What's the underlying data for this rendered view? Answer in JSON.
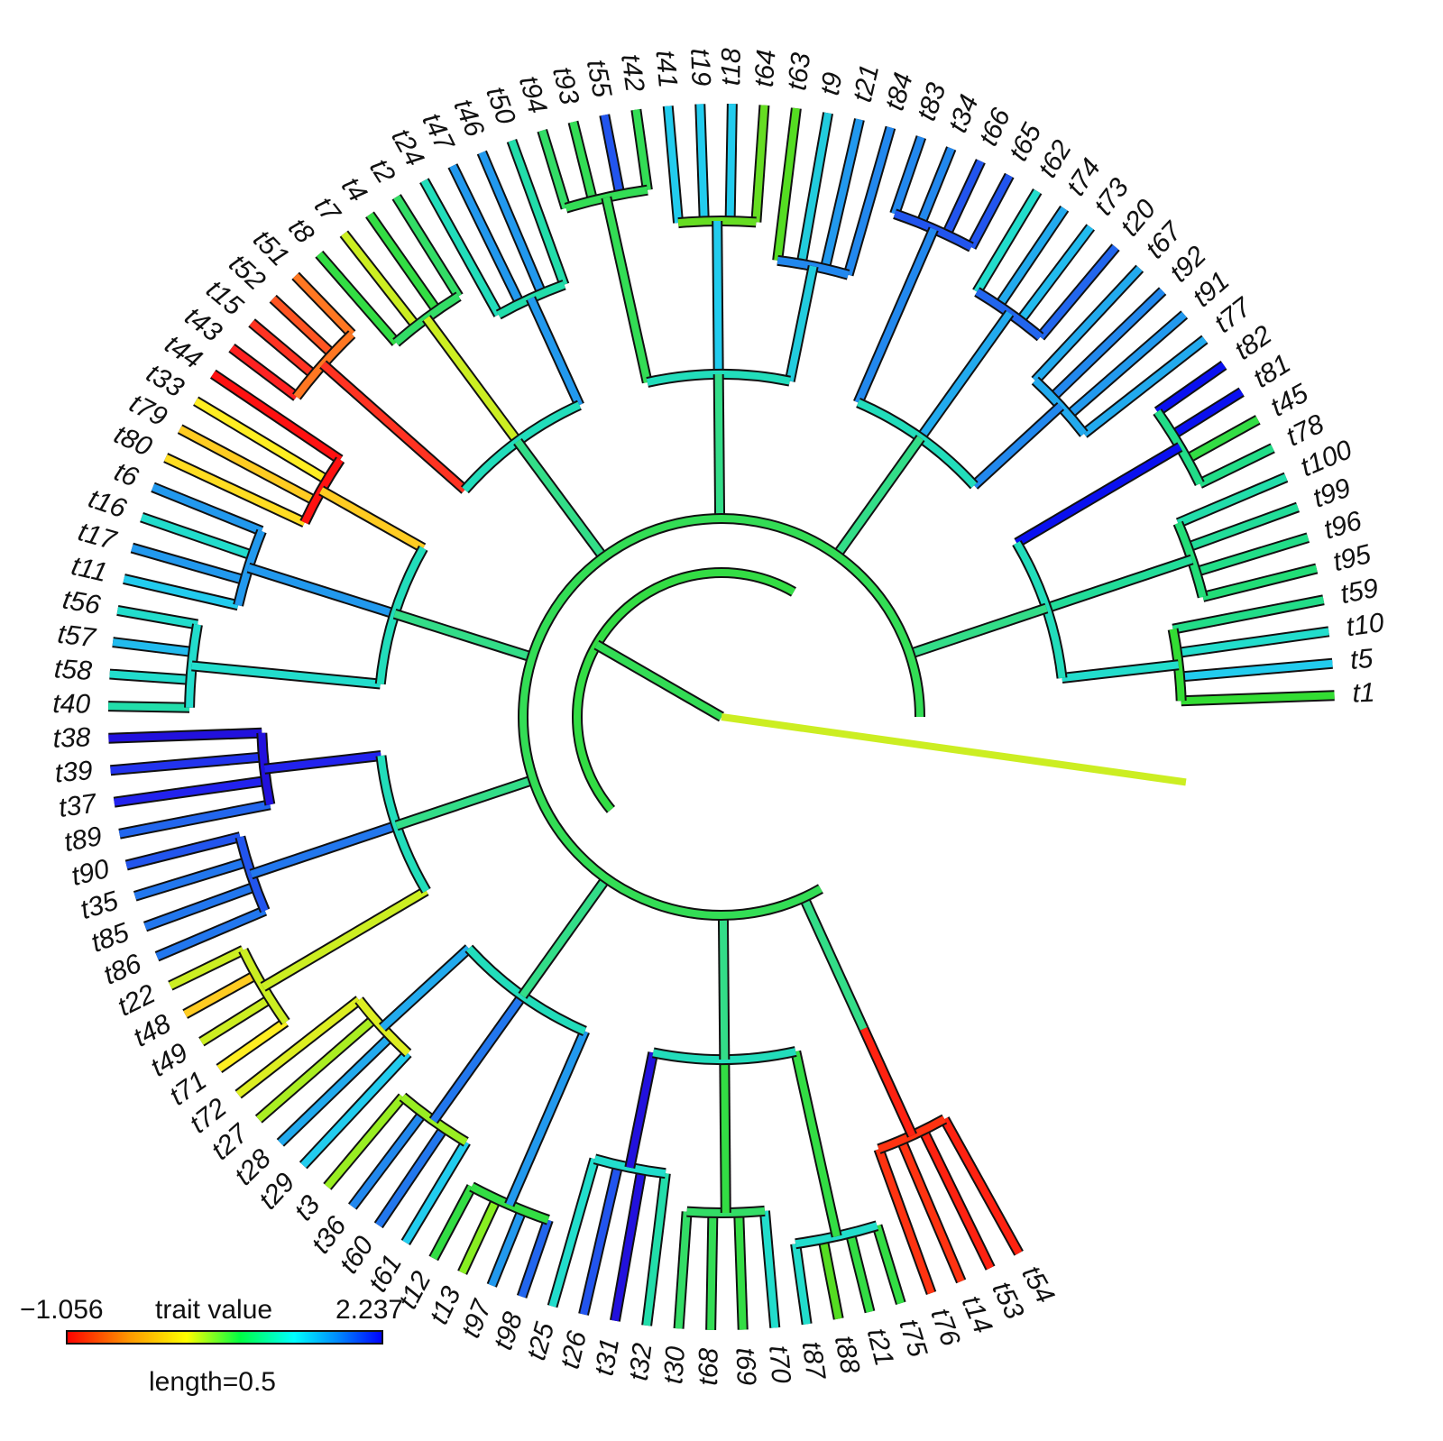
{
  "legend": {
    "min_label": "−1.056",
    "title": "trait value",
    "max_label": "2.237",
    "length_label": "length=0.5",
    "gradient": [
      "#ff0000",
      "#ff8000",
      "#ffff00",
      "#00ff00",
      "#00ffff",
      "#0080ff",
      "#0000ff"
    ]
  },
  "tips": [
    {
      "label": "t1",
      "angle": -2,
      "color": "#33dd33"
    },
    {
      "label": "t5",
      "angle": -5,
      "color": "#22ccee"
    },
    {
      "label": "t10",
      "angle": -8,
      "color": "#22ddcc"
    },
    {
      "label": "t59",
      "angle": -11,
      "color": "#22dd88"
    },
    {
      "label": "t95",
      "angle": -14,
      "color": "#22dd77"
    },
    {
      "label": "t96",
      "angle": -17,
      "color": "#22dd88"
    },
    {
      "label": "t99",
      "angle": -20,
      "color": "#22dd99"
    },
    {
      "label": "t100",
      "angle": -23,
      "color": "#22ddaa"
    },
    {
      "label": "t78",
      "angle": -26,
      "color": "#22dd88"
    },
    {
      "label": "t45",
      "angle": -29,
      "color": "#33dd44"
    },
    {
      "label": "t81",
      "angle": -32,
      "color": "#0a10f0"
    },
    {
      "label": "t82",
      "angle": -35,
      "color": "#0a10f0"
    },
    {
      "label": "t77",
      "angle": -38,
      "color": "#22aaee"
    },
    {
      "label": "t91",
      "angle": -41,
      "color": "#2299ee"
    },
    {
      "label": "t92",
      "angle": -44,
      "color": "#2288ee"
    },
    {
      "label": "t67",
      "angle": -47,
      "color": "#22aaee"
    },
    {
      "label": "t20",
      "angle": -50,
      "color": "#2266ee"
    },
    {
      "label": "t73",
      "angle": -53,
      "color": "#22bbee"
    },
    {
      "label": "t74",
      "angle": -56,
      "color": "#22aaee"
    },
    {
      "label": "t62",
      "angle": -59,
      "color": "#22ddcc"
    },
    {
      "label": "t65",
      "angle": -62,
      "color": "#2255ee"
    },
    {
      "label": "t66",
      "angle": -65,
      "color": "#2255ee"
    },
    {
      "label": "t34",
      "angle": -68,
      "color": "#2288ee"
    },
    {
      "label": "t83",
      "angle": -71,
      "color": "#2288ee"
    },
    {
      "label": "t84",
      "angle": -74,
      "color": "#2288ee"
    },
    {
      "label": "t21",
      "angle": -77,
      "color": "#2299ee"
    },
    {
      "label": "t9",
      "angle": -80,
      "color": "#22ccdd"
    },
    {
      "label": "t63",
      "angle": -83,
      "color": "#55dd22"
    },
    {
      "label": "t64",
      "angle": -86,
      "color": "#66dd22"
    },
    {
      "label": "t18",
      "angle": -89,
      "color": "#22ccee"
    },
    {
      "label": "t19",
      "angle": -92,
      "color": "#22ccee"
    },
    {
      "label": "t41",
      "angle": -95,
      "color": "#22ccee"
    },
    {
      "label": "t42",
      "angle": -98,
      "color": "#33dd55"
    },
    {
      "label": "t55",
      "angle": -101,
      "color": "#2255ee"
    },
    {
      "label": "t93",
      "angle": -104,
      "color": "#33dd55"
    },
    {
      "label": "t94",
      "angle": -107,
      "color": "#33dd66"
    },
    {
      "label": "t50",
      "angle": -110,
      "color": "#22ddaa"
    },
    {
      "label": "t46",
      "angle": -113,
      "color": "#2299ee"
    },
    {
      "label": "t47",
      "angle": -116,
      "color": "#2299ee"
    },
    {
      "label": "t24",
      "angle": -119,
      "color": "#22ddbb"
    },
    {
      "label": "t2",
      "angle": -122,
      "color": "#33dd66"
    },
    {
      "label": "t4",
      "angle": -125,
      "color": "#33dd44"
    },
    {
      "label": "t7",
      "angle": -128,
      "color": "#ccee22"
    },
    {
      "label": "t8",
      "angle": -131,
      "color": "#33dd44"
    },
    {
      "label": "t51",
      "angle": -134,
      "color": "#ff7722"
    },
    {
      "label": "t52",
      "angle": -137,
      "color": "#ff5522"
    },
    {
      "label": "t15",
      "angle": -140,
      "color": "#ff3322"
    },
    {
      "label": "t43",
      "angle": -143,
      "color": "#ff2222"
    },
    {
      "label": "t44",
      "angle": -146,
      "color": "#ff1111"
    },
    {
      "label": "t33",
      "angle": -149,
      "color": "#ffee22"
    },
    {
      "label": "t79",
      "angle": -152,
      "color": "#ffcc22"
    },
    {
      "label": "t80",
      "angle": -155,
      "color": "#ffdd22"
    },
    {
      "label": "t6",
      "angle": -158,
      "color": "#2299ee"
    },
    {
      "label": "t16",
      "angle": -161,
      "color": "#22ddcc"
    },
    {
      "label": "t17",
      "angle": -164,
      "color": "#2299ee"
    },
    {
      "label": "t11",
      "angle": -167,
      "color": "#22ccee"
    },
    {
      "label": "t56",
      "angle": -170,
      "color": "#22ddcc"
    },
    {
      "label": "t57",
      "angle": -173,
      "color": "#22bbee"
    },
    {
      "label": "t58",
      "angle": -176,
      "color": "#22ddcc"
    },
    {
      "label": "t40",
      "angle": -179,
      "color": "#22ddaa"
    },
    {
      "label": "t38",
      "angle": -182,
      "color": "#2211dd"
    },
    {
      "label": "t39",
      "angle": -185,
      "color": "#2233ee"
    },
    {
      "label": "t37",
      "angle": -188,
      "color": "#2222ee"
    },
    {
      "label": "t89",
      "angle": -191,
      "color": "#2266ee"
    },
    {
      "label": "t90",
      "angle": -194,
      "color": "#2255ee"
    },
    {
      "label": "t35",
      "angle": -197,
      "color": "#2277ee"
    },
    {
      "label": "t85",
      "angle": -200,
      "color": "#2277ee"
    },
    {
      "label": "t86",
      "angle": -203,
      "color": "#2277ee"
    },
    {
      "label": "t22",
      "angle": -206,
      "color": "#ccee22"
    },
    {
      "label": "t48",
      "angle": -209,
      "color": "#ffcc22"
    },
    {
      "label": "t49",
      "angle": -212,
      "color": "#ccee22"
    },
    {
      "label": "t71",
      "angle": -215,
      "color": "#ffee22"
    },
    {
      "label": "t72",
      "angle": -218,
      "color": "#ddee22"
    },
    {
      "label": "t27",
      "angle": -221,
      "color": "#aaee22"
    },
    {
      "label": "t28",
      "angle": -224,
      "color": "#22aaee"
    },
    {
      "label": "t29",
      "angle": -227,
      "color": "#22ccee"
    },
    {
      "label": "t3",
      "angle": -230,
      "color": "#99ee22"
    },
    {
      "label": "t36",
      "angle": -233,
      "color": "#2288ee"
    },
    {
      "label": "t60",
      "angle": -236,
      "color": "#2277ee"
    },
    {
      "label": "t61",
      "angle": -239,
      "color": "#22ccee"
    },
    {
      "label": "t12",
      "angle": -242,
      "color": "#33dd44"
    },
    {
      "label": "t13",
      "angle": -245,
      "color": "#88ee22"
    },
    {
      "label": "t97",
      "angle": -248,
      "color": "#2299ee"
    },
    {
      "label": "t98",
      "angle": -251,
      "color": "#2266ee"
    },
    {
      "label": "t25",
      "angle": -254,
      "color": "#22ddcc"
    },
    {
      "label": "t26",
      "angle": -257,
      "color": "#2255ee"
    },
    {
      "label": "t31",
      "angle": -260,
      "color": "#2211dd"
    },
    {
      "label": "t32",
      "angle": -263,
      "color": "#22ddaa"
    },
    {
      "label": "t30",
      "angle": -266,
      "color": "#33dd66"
    },
    {
      "label": "t68",
      "angle": -269,
      "color": "#33dd55"
    },
    {
      "label": "t69",
      "angle": -272,
      "color": "#33dd44"
    },
    {
      "label": "t70",
      "angle": -275,
      "color": "#22ddcc"
    },
    {
      "label": "t87",
      "angle": -278,
      "color": "#22ddcc"
    },
    {
      "label": "t88",
      "angle": -281,
      "color": "#55dd22"
    },
    {
      "label": "t21",
      "angle": -284,
      "color": "#33dd44"
    },
    {
      "label": "t75",
      "angle": -287,
      "color": "#33dd44"
    },
    {
      "label": "t76",
      "angle": -290,
      "color": "#ff3311"
    },
    {
      "label": "t14",
      "angle": -293,
      "color": "#ff3311"
    },
    {
      "label": "t53",
      "angle": -296,
      "color": "#ff2211"
    },
    {
      "label": "t54",
      "angle": -299,
      "color": "#ff2211"
    }
  ]
}
